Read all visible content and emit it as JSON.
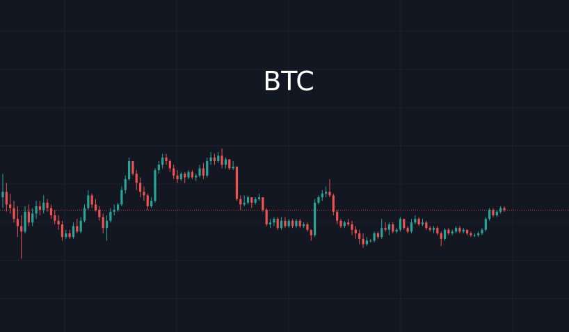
{
  "colors": {
    "background": "#131722",
    "grid": "#1e2230",
    "up": "#26a69a",
    "down": "#ef5350",
    "title": "#ffffff"
  },
  "chart_data": {
    "type": "candlestick",
    "title": "BTC",
    "xlabel": "",
    "ylabel": "",
    "grid": true,
    "ylim": [
      0,
      100
    ],
    "last_price": 52.8,
    "candles": [
      {
        "o": 60,
        "h": 73,
        "l": 54,
        "c": 63
      },
      {
        "o": 63,
        "h": 68,
        "l": 52,
        "c": 56
      },
      {
        "o": 56,
        "h": 62,
        "l": 51,
        "c": 54
      },
      {
        "o": 54,
        "h": 58,
        "l": 46,
        "c": 48
      },
      {
        "o": 48,
        "h": 55,
        "l": 38,
        "c": 44
      },
      {
        "o": 44,
        "h": 50,
        "l": 26,
        "c": 41
      },
      {
        "o": 41,
        "h": 55,
        "l": 40,
        "c": 52
      },
      {
        "o": 52,
        "h": 56,
        "l": 44,
        "c": 46
      },
      {
        "o": 46,
        "h": 54,
        "l": 44,
        "c": 51
      },
      {
        "o": 51,
        "h": 58,
        "l": 48,
        "c": 55
      },
      {
        "o": 55,
        "h": 58,
        "l": 50,
        "c": 53
      },
      {
        "o": 53,
        "h": 61,
        "l": 51,
        "c": 57
      },
      {
        "o": 57,
        "h": 59,
        "l": 52,
        "c": 54
      },
      {
        "o": 54,
        "h": 56,
        "l": 48,
        "c": 50
      },
      {
        "o": 50,
        "h": 53,
        "l": 45,
        "c": 47
      },
      {
        "o": 47,
        "h": 50,
        "l": 42,
        "c": 45
      },
      {
        "o": 45,
        "h": 47,
        "l": 36,
        "c": 38
      },
      {
        "o": 38,
        "h": 42,
        "l": 37,
        "c": 40
      },
      {
        "o": 40,
        "h": 42,
        "l": 37,
        "c": 38
      },
      {
        "o": 38,
        "h": 46,
        "l": 37,
        "c": 44
      },
      {
        "o": 44,
        "h": 48,
        "l": 40,
        "c": 41
      },
      {
        "o": 41,
        "h": 49,
        "l": 40,
        "c": 47
      },
      {
        "o": 47,
        "h": 56,
        "l": 46,
        "c": 54
      },
      {
        "o": 54,
        "h": 64,
        "l": 53,
        "c": 61
      },
      {
        "o": 61,
        "h": 62,
        "l": 54,
        "c": 56
      },
      {
        "o": 56,
        "h": 59,
        "l": 52,
        "c": 53
      },
      {
        "o": 53,
        "h": 55,
        "l": 47,
        "c": 49
      },
      {
        "o": 49,
        "h": 51,
        "l": 40,
        "c": 43
      },
      {
        "o": 43,
        "h": 50,
        "l": 36,
        "c": 47
      },
      {
        "o": 47,
        "h": 54,
        "l": 46,
        "c": 52
      },
      {
        "o": 52,
        "h": 56,
        "l": 50,
        "c": 53
      },
      {
        "o": 53,
        "h": 57,
        "l": 52,
        "c": 56
      },
      {
        "o": 56,
        "h": 66,
        "l": 55,
        "c": 64
      },
      {
        "o": 64,
        "h": 72,
        "l": 62,
        "c": 70
      },
      {
        "o": 70,
        "h": 82,
        "l": 69,
        "c": 80
      },
      {
        "o": 80,
        "h": 80,
        "l": 72,
        "c": 73
      },
      {
        "o": 73,
        "h": 75,
        "l": 64,
        "c": 68
      },
      {
        "o": 68,
        "h": 71,
        "l": 60,
        "c": 63
      },
      {
        "o": 63,
        "h": 66,
        "l": 58,
        "c": 61
      },
      {
        "o": 61,
        "h": 62,
        "l": 53,
        "c": 55
      },
      {
        "o": 55,
        "h": 60,
        "l": 54,
        "c": 58
      },
      {
        "o": 58,
        "h": 76,
        "l": 57,
        "c": 75
      },
      {
        "o": 75,
        "h": 80,
        "l": 73,
        "c": 78
      },
      {
        "o": 78,
        "h": 84,
        "l": 76,
        "c": 82
      },
      {
        "o": 82,
        "h": 84,
        "l": 78,
        "c": 80
      },
      {
        "o": 80,
        "h": 81,
        "l": 74,
        "c": 76
      },
      {
        "o": 76,
        "h": 78,
        "l": 70,
        "c": 72
      },
      {
        "o": 72,
        "h": 75,
        "l": 68,
        "c": 70
      },
      {
        "o": 70,
        "h": 74,
        "l": 69,
        "c": 73
      },
      {
        "o": 73,
        "h": 74,
        "l": 68,
        "c": 71
      },
      {
        "o": 71,
        "h": 75,
        "l": 70,
        "c": 74
      },
      {
        "o": 74,
        "h": 75,
        "l": 70,
        "c": 71
      },
      {
        "o": 71,
        "h": 73,
        "l": 69,
        "c": 72
      },
      {
        "o": 72,
        "h": 78,
        "l": 71,
        "c": 76
      },
      {
        "o": 76,
        "h": 79,
        "l": 70,
        "c": 72
      },
      {
        "o": 72,
        "h": 82,
        "l": 71,
        "c": 80
      },
      {
        "o": 80,
        "h": 85,
        "l": 78,
        "c": 82
      },
      {
        "o": 82,
        "h": 84,
        "l": 78,
        "c": 80
      },
      {
        "o": 80,
        "h": 85,
        "l": 79,
        "c": 83
      },
      {
        "o": 83,
        "h": 87,
        "l": 76,
        "c": 78
      },
      {
        "o": 78,
        "h": 82,
        "l": 76,
        "c": 81
      },
      {
        "o": 81,
        "h": 81,
        "l": 75,
        "c": 76
      },
      {
        "o": 76,
        "h": 80,
        "l": 75,
        "c": 77
      },
      {
        "o": 77,
        "h": 77,
        "l": 58,
        "c": 59
      },
      {
        "o": 59,
        "h": 61,
        "l": 53,
        "c": 56
      },
      {
        "o": 56,
        "h": 61,
        "l": 55,
        "c": 57
      },
      {
        "o": 57,
        "h": 61,
        "l": 56,
        "c": 60
      },
      {
        "o": 60,
        "h": 60,
        "l": 54,
        "c": 57
      },
      {
        "o": 57,
        "h": 60,
        "l": 56,
        "c": 59
      },
      {
        "o": 59,
        "h": 62,
        "l": 58,
        "c": 60
      },
      {
        "o": 60,
        "h": 60,
        "l": 52,
        "c": 53
      },
      {
        "o": 53,
        "h": 54,
        "l": 44,
        "c": 45
      },
      {
        "o": 45,
        "h": 48,
        "l": 43,
        "c": 46
      },
      {
        "o": 46,
        "h": 49,
        "l": 44,
        "c": 48
      },
      {
        "o": 48,
        "h": 49,
        "l": 42,
        "c": 43
      },
      {
        "o": 43,
        "h": 49,
        "l": 42,
        "c": 47
      },
      {
        "o": 47,
        "h": 49,
        "l": 43,
        "c": 44
      },
      {
        "o": 44,
        "h": 48,
        "l": 43,
        "c": 47
      },
      {
        "o": 47,
        "h": 48,
        "l": 43,
        "c": 44
      },
      {
        "o": 44,
        "h": 48,
        "l": 43,
        "c": 47
      },
      {
        "o": 47,
        "h": 48,
        "l": 43,
        "c": 44
      },
      {
        "o": 44,
        "h": 46,
        "l": 43,
        "c": 45
      },
      {
        "o": 45,
        "h": 46,
        "l": 41,
        "c": 42
      },
      {
        "o": 42,
        "h": 42,
        "l": 36,
        "c": 39
      },
      {
        "o": 39,
        "h": 59,
        "l": 38,
        "c": 57
      },
      {
        "o": 57,
        "h": 61,
        "l": 56,
        "c": 60
      },
      {
        "o": 60,
        "h": 64,
        "l": 58,
        "c": 62
      },
      {
        "o": 62,
        "h": 66,
        "l": 60,
        "c": 63
      },
      {
        "o": 63,
        "h": 70,
        "l": 60,
        "c": 61
      },
      {
        "o": 61,
        "h": 62,
        "l": 50,
        "c": 52
      },
      {
        "o": 52,
        "h": 53,
        "l": 45,
        "c": 47
      },
      {
        "o": 47,
        "h": 48,
        "l": 43,
        "c": 44
      },
      {
        "o": 44,
        "h": 47,
        "l": 43,
        "c": 46
      },
      {
        "o": 46,
        "h": 48,
        "l": 44,
        "c": 45
      },
      {
        "o": 45,
        "h": 47,
        "l": 39,
        "c": 42
      },
      {
        "o": 42,
        "h": 44,
        "l": 37,
        "c": 40
      },
      {
        "o": 40,
        "h": 42,
        "l": 34,
        "c": 37
      },
      {
        "o": 37,
        "h": 40,
        "l": 32,
        "c": 34
      },
      {
        "o": 34,
        "h": 38,
        "l": 33,
        "c": 36
      },
      {
        "o": 36,
        "h": 37,
        "l": 35,
        "c": 36
      },
      {
        "o": 36,
        "h": 41,
        "l": 35,
        "c": 40
      },
      {
        "o": 40,
        "h": 41,
        "l": 37,
        "c": 38
      },
      {
        "o": 38,
        "h": 48,
        "l": 37,
        "c": 43
      },
      {
        "o": 43,
        "h": 46,
        "l": 41,
        "c": 42
      },
      {
        "o": 42,
        "h": 46,
        "l": 39,
        "c": 45
      },
      {
        "o": 45,
        "h": 46,
        "l": 40,
        "c": 41
      },
      {
        "o": 41,
        "h": 43,
        "l": 40,
        "c": 42
      },
      {
        "o": 42,
        "h": 49,
        "l": 41,
        "c": 48
      },
      {
        "o": 48,
        "h": 48,
        "l": 42,
        "c": 43
      },
      {
        "o": 43,
        "h": 44,
        "l": 40,
        "c": 41
      },
      {
        "o": 41,
        "h": 48,
        "l": 40,
        "c": 46
      },
      {
        "o": 46,
        "h": 50,
        "l": 45,
        "c": 48
      },
      {
        "o": 48,
        "h": 49,
        "l": 44,
        "c": 45
      },
      {
        "o": 45,
        "h": 48,
        "l": 44,
        "c": 46
      },
      {
        "o": 46,
        "h": 47,
        "l": 42,
        "c": 43
      },
      {
        "o": 43,
        "h": 44,
        "l": 41,
        "c": 42
      },
      {
        "o": 42,
        "h": 44,
        "l": 40,
        "c": 43
      },
      {
        "o": 43,
        "h": 44,
        "l": 39,
        "c": 40
      },
      {
        "o": 40,
        "h": 41,
        "l": 33,
        "c": 37
      },
      {
        "o": 37,
        "h": 43,
        "l": 36,
        "c": 42
      },
      {
        "o": 42,
        "h": 43,
        "l": 39,
        "c": 40
      },
      {
        "o": 40,
        "h": 42,
        "l": 39,
        "c": 41
      },
      {
        "o": 41,
        "h": 44,
        "l": 40,
        "c": 43
      },
      {
        "o": 43,
        "h": 44,
        "l": 40,
        "c": 41
      },
      {
        "o": 41,
        "h": 43,
        "l": 40,
        "c": 42
      },
      {
        "o": 42,
        "h": 42,
        "l": 39,
        "c": 40
      },
      {
        "o": 40,
        "h": 41,
        "l": 38,
        "c": 39
      },
      {
        "o": 39,
        "h": 40,
        "l": 38,
        "c": 39
      },
      {
        "o": 39,
        "h": 41,
        "l": 38,
        "c": 40
      },
      {
        "o": 40,
        "h": 43,
        "l": 39,
        "c": 42
      },
      {
        "o": 42,
        "h": 49,
        "l": 41,
        "c": 48
      },
      {
        "o": 48,
        "h": 54,
        "l": 47,
        "c": 53
      },
      {
        "o": 53,
        "h": 54,
        "l": 49,
        "c": 50
      },
      {
        "o": 50,
        "h": 53,
        "l": 49,
        "c": 52
      },
      {
        "o": 52,
        "h": 55,
        "l": 51,
        "c": 54
      },
      {
        "o": 54,
        "h": 55,
        "l": 52,
        "c": 53
      }
    ]
  }
}
